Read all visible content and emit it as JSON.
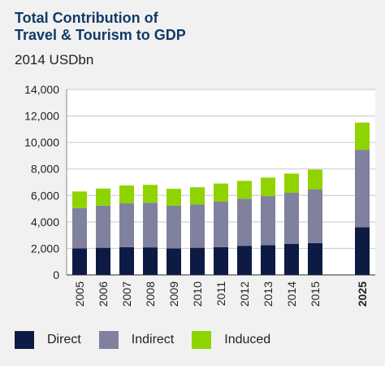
{
  "header": {
    "title_line1": "Total Contribution of",
    "title_line2": "Travel & Tourism to GDP",
    "unit": "2014 USDbn"
  },
  "chart_data": {
    "type": "bar",
    "stacked": true,
    "categories": [
      "2005",
      "2006",
      "2007",
      "2008",
      "2009",
      "2010",
      "2011",
      "2012",
      "2013",
      "2014",
      "2015",
      "2025"
    ],
    "highlight_category": "2025",
    "series": [
      {
        "name": "Direct",
        "color": "#0d1b44",
        "values": [
          2000,
          2050,
          2100,
          2080,
          2000,
          2050,
          2100,
          2200,
          2250,
          2350,
          2400,
          3600
        ]
      },
      {
        "name": "Indirect",
        "color": "#80819f",
        "values": [
          3050,
          3180,
          3300,
          3370,
          3220,
          3270,
          3450,
          3550,
          3700,
          3850,
          4050,
          5850
        ]
      },
      {
        "name": "Induced",
        "color": "#8fd400",
        "values": [
          1250,
          1290,
          1350,
          1350,
          1280,
          1300,
          1350,
          1350,
          1400,
          1450,
          1500,
          2050
        ]
      }
    ],
    "ylim": [
      0,
      14000
    ],
    "yticks": [
      "0",
      "2,000",
      "4,000",
      "6,000",
      "8,000",
      "10,000",
      "12,000",
      "14,000"
    ],
    "ytick_values": [
      0,
      2000,
      4000,
      6000,
      8000,
      10000,
      12000,
      14000
    ],
    "grid": true,
    "legend_position": "bottom"
  }
}
